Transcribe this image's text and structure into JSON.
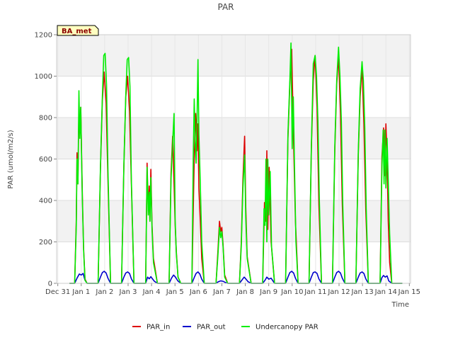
{
  "chart_data": {
    "type": "line",
    "title": "PAR",
    "xlabel": "Time",
    "ylabel": "PAR (umol/m2/s)",
    "ylim": [
      0,
      1200
    ],
    "yticks": [
      0,
      200,
      400,
      600,
      800,
      1000,
      1200
    ],
    "xlim": [
      -0.55,
      14.55
    ],
    "xticks": [
      {
        "pos": -0.5,
        "label": "Dec 31"
      },
      {
        "pos": 0.5,
        "label": "Jan 1"
      },
      {
        "pos": 1.5,
        "label": "Jan 2"
      },
      {
        "pos": 2.5,
        "label": "Jan 3"
      },
      {
        "pos": 3.5,
        "label": "Jan 4"
      },
      {
        "pos": 4.5,
        "label": "Jan 5"
      },
      {
        "pos": 5.5,
        "label": "Jan 6"
      },
      {
        "pos": 6.5,
        "label": "Jan 7"
      },
      {
        "pos": 7.5,
        "label": "Jan 8"
      },
      {
        "pos": 8.5,
        "label": "Jan 9"
      },
      {
        "pos": 9.5,
        "label": "Jan 10"
      },
      {
        "pos": 10.5,
        "label": "Jan 11"
      },
      {
        "pos": 11.5,
        "label": "Jan 12"
      },
      {
        "pos": 12.5,
        "label": "Jan 13"
      },
      {
        "pos": 13.5,
        "label": "Jan 14"
      },
      {
        "pos": 14.5,
        "label": "Jan 15"
      }
    ],
    "annotation": "BA_met",
    "legend_position": "bottom-center",
    "series": [
      {
        "name": "PAR_in",
        "color": "#dd0000",
        "x": [
          0,
          0.22,
          0.29,
          0.32,
          0.36,
          0.4,
          0.44,
          0.48,
          0.52,
          0.55,
          0.6,
          0.66,
          0.75,
          1,
          1.22,
          1.32,
          1.4,
          1.48,
          1.56,
          1.64,
          1.75,
          2,
          2.22,
          2.32,
          2.4,
          2.48,
          2.56,
          2.64,
          2.75,
          3,
          3.25,
          3.31,
          3.36,
          3.4,
          3.43,
          3.47,
          3.52,
          3.58,
          3.75,
          4,
          4.25,
          4.33,
          4.4,
          4.46,
          4.51,
          4.56,
          4.63,
          4.75,
          5,
          5.22,
          5.32,
          5.38,
          5.44,
          5.48,
          5.52,
          5.58,
          5.64,
          5.75,
          6,
          6.25,
          6.33,
          6.4,
          6.45,
          6.5,
          6.55,
          6.62,
          6.75,
          7,
          7.25,
          7.33,
          7.4,
          7.47,
          7.52,
          7.58,
          7.75,
          8,
          8.24,
          8.32,
          8.38,
          8.42,
          8.46,
          8.52,
          8.6,
          8.75,
          9,
          9.22,
          9.32,
          9.4,
          9.48,
          9.56,
          9.64,
          9.75,
          10,
          10.22,
          10.32,
          10.4,
          10.48,
          10.56,
          10.64,
          10.75,
          11,
          11.22,
          11.32,
          11.4,
          11.48,
          11.56,
          11.64,
          11.75,
          12,
          12.22,
          12.32,
          12.4,
          12.48,
          12.56,
          12.64,
          12.75,
          13,
          13.25,
          13.33,
          13.4,
          13.45,
          13.5,
          13.55,
          13.6,
          13.66,
          13.75,
          14.2
        ],
        "y": [
          0,
          0,
          310,
          630,
          480,
          840,
          720,
          850,
          600,
          420,
          170,
          20,
          0,
          0,
          0,
          550,
          880,
          1020,
          870,
          500,
          0,
          0,
          0,
          560,
          900,
          1000,
          830,
          480,
          0,
          0,
          0,
          580,
          350,
          470,
          300,
          550,
          280,
          120,
          0,
          0,
          0,
          530,
          710,
          480,
          280,
          150,
          30,
          0,
          0,
          0,
          600,
          820,
          640,
          770,
          460,
          300,
          120,
          0,
          0,
          0,
          150,
          300,
          250,
          270,
          190,
          40,
          0,
          0,
          0,
          200,
          500,
          710,
          370,
          130,
          0,
          0,
          0,
          390,
          300,
          640,
          260,
          560,
          200,
          0,
          0,
          0,
          700,
          960,
          1130,
          680,
          300,
          0,
          0,
          0,
          650,
          980,
          1100,
          850,
          380,
          0,
          0,
          0,
          640,
          960,
          1100,
          820,
          380,
          0,
          0,
          0,
          620,
          900,
          1050,
          770,
          350,
          0,
          0,
          0,
          610,
          750,
          520,
          770,
          600,
          300,
          100,
          0,
          0
        ]
      },
      {
        "name": "PAR_out",
        "color": "#0000cc",
        "x": [
          0,
          0.22,
          0.32,
          0.42,
          0.5,
          0.58,
          0.66,
          0.75,
          1,
          1.22,
          1.32,
          1.4,
          1.48,
          1.56,
          1.64,
          1.75,
          2,
          2.22,
          2.32,
          2.4,
          2.48,
          2.56,
          2.64,
          2.75,
          3,
          3.25,
          3.33,
          3.4,
          3.47,
          3.55,
          3.62,
          3.75,
          4,
          4.25,
          4.35,
          4.44,
          4.52,
          4.62,
          4.75,
          5,
          5.22,
          5.32,
          5.4,
          5.48,
          5.56,
          5.64,
          5.75,
          6,
          6.25,
          6.35,
          6.45,
          6.55,
          6.65,
          6.75,
          7,
          7.25,
          7.35,
          7.45,
          7.52,
          7.62,
          7.75,
          8,
          8.24,
          8.34,
          8.42,
          8.5,
          8.6,
          8.75,
          9,
          9.22,
          9.32,
          9.4,
          9.48,
          9.56,
          9.64,
          9.75,
          10,
          10.22,
          10.32,
          10.4,
          10.48,
          10.56,
          10.64,
          10.75,
          11,
          11.22,
          11.32,
          11.4,
          11.48,
          11.56,
          11.64,
          11.75,
          12,
          12.22,
          12.32,
          12.4,
          12.48,
          12.56,
          12.64,
          12.75,
          13,
          13.25,
          13.33,
          13.4,
          13.47,
          13.55,
          13.62,
          13.75,
          14.2
        ],
        "y": [
          0,
          0,
          25,
          45,
          40,
          48,
          15,
          0,
          0,
          0,
          30,
          52,
          58,
          50,
          25,
          0,
          0,
          0,
          30,
          50,
          55,
          48,
          22,
          0,
          0,
          0,
          30,
          22,
          32,
          20,
          10,
          0,
          0,
          0,
          25,
          40,
          30,
          12,
          0,
          0,
          0,
          28,
          48,
          55,
          45,
          20,
          0,
          0,
          0,
          8,
          12,
          10,
          4,
          0,
          0,
          0,
          15,
          30,
          22,
          8,
          0,
          0,
          0,
          15,
          30,
          20,
          25,
          0,
          0,
          0,
          30,
          52,
          58,
          50,
          25,
          0,
          0,
          0,
          30,
          52,
          55,
          48,
          22,
          0,
          0,
          0,
          30,
          52,
          58,
          50,
          25,
          0,
          0,
          0,
          30,
          50,
          55,
          48,
          22,
          0,
          0,
          0,
          28,
          38,
          30,
          36,
          12,
          0,
          0
        ]
      },
      {
        "name": "Undercanopy PAR",
        "color": "#00ee00",
        "x": [
          0,
          0.22,
          0.29,
          0.32,
          0.36,
          0.4,
          0.44,
          0.48,
          0.52,
          0.55,
          0.6,
          0.66,
          0.75,
          1,
          1.22,
          1.32,
          1.4,
          1.46,
          1.52,
          1.58,
          1.64,
          1.75,
          2,
          2.22,
          2.32,
          2.4,
          2.46,
          2.52,
          2.58,
          2.64,
          2.75,
          3,
          3.25,
          3.31,
          3.36,
          3.4,
          3.43,
          3.47,
          3.52,
          3.58,
          3.75,
          4,
          4.25,
          4.33,
          4.4,
          4.46,
          4.51,
          4.56,
          4.63,
          4.75,
          5,
          5.22,
          5.28,
          5.32,
          5.36,
          5.4,
          5.44,
          5.48,
          5.52,
          5.58,
          5.64,
          5.75,
          6,
          6.25,
          6.33,
          6.4,
          6.45,
          6.5,
          6.55,
          6.62,
          6.75,
          7,
          7.25,
          7.33,
          7.4,
          7.47,
          7.52,
          7.58,
          7.75,
          8,
          8.24,
          8.3,
          8.34,
          8.38,
          8.42,
          8.46,
          8.5,
          8.56,
          8.62,
          8.75,
          9,
          9.22,
          9.32,
          9.4,
          9.45,
          9.5,
          9.55,
          9.6,
          9.66,
          9.75,
          10,
          10.22,
          10.32,
          10.4,
          10.48,
          10.54,
          10.6,
          10.66,
          10.75,
          11,
          11.22,
          11.32,
          11.4,
          11.48,
          11.54,
          11.6,
          11.66,
          11.75,
          12,
          12.22,
          12.32,
          12.4,
          12.48,
          12.54,
          12.6,
          12.66,
          12.75,
          13,
          13.25,
          13.33,
          13.38,
          13.42,
          13.46,
          13.5,
          13.55,
          13.6,
          13.66,
          13.75,
          14.2
        ],
        "y": [
          0,
          0,
          280,
          600,
          480,
          930,
          700,
          850,
          580,
          400,
          160,
          15,
          0,
          0,
          0,
          560,
          900,
          1100,
          1110,
          960,
          550,
          0,
          0,
          0,
          570,
          910,
          1080,
          1090,
          950,
          500,
          0,
          0,
          0,
          560,
          330,
          440,
          300,
          510,
          260,
          100,
          0,
          0,
          0,
          500,
          680,
          820,
          300,
          140,
          30,
          0,
          0,
          0,
          600,
          890,
          700,
          580,
          780,
          1080,
          720,
          480,
          200,
          0,
          0,
          0,
          130,
          270,
          220,
          250,
          180,
          30,
          0,
          0,
          0,
          180,
          460,
          620,
          320,
          120,
          0,
          0,
          0,
          360,
          280,
          600,
          200,
          600,
          330,
          540,
          180,
          0,
          0,
          0,
          720,
          980,
          1160,
          650,
          900,
          560,
          200,
          0,
          0,
          0,
          660,
          1060,
          1100,
          1000,
          780,
          400,
          0,
          0,
          0,
          660,
          980,
          1140,
          1000,
          780,
          380,
          0,
          0,
          0,
          640,
          940,
          1070,
          980,
          750,
          360,
          0,
          0,
          0,
          560,
          740,
          480,
          740,
          460,
          700,
          500,
          240,
          0,
          0
        ]
      }
    ]
  }
}
